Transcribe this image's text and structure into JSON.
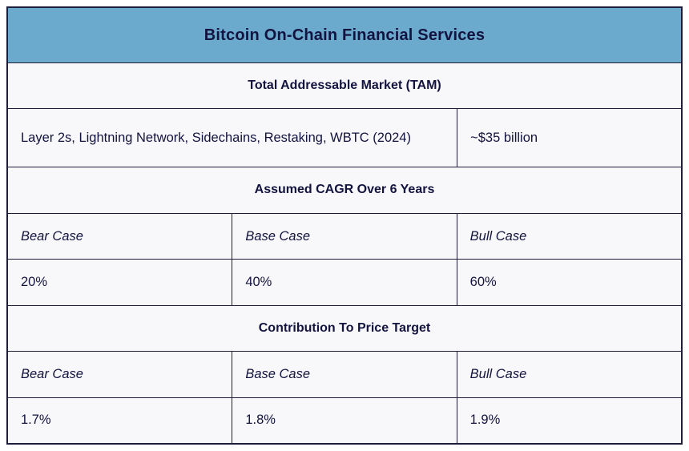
{
  "colors": {
    "title_bar_bg": "#6BA9CD",
    "text": "#131340",
    "border": "#1E1E3C",
    "cell_bg": "#F8F8FA"
  },
  "chart_data": {
    "type": "table",
    "title": "Bitcoin On-Chain Financial Services",
    "sections": [
      {
        "header": "Total Addressable Market (TAM)",
        "rows": [
          [
            "Layer 2s, Lightning Network, Sidechains, Restaking, WBTC (2024)",
            "~$35 billion"
          ]
        ]
      },
      {
        "header": "Assumed CAGR Over 6 Years",
        "columns": [
          "Bear Case",
          "Base Case",
          "Bull Case"
        ],
        "values": [
          "20%",
          "40%",
          "60%"
        ]
      },
      {
        "header": "Contribution To Price Target",
        "columns": [
          "Bear Case",
          "Base Case",
          "Bull Case"
        ],
        "values": [
          "1.7%",
          "1.8%",
          "1.9%"
        ]
      }
    ]
  }
}
